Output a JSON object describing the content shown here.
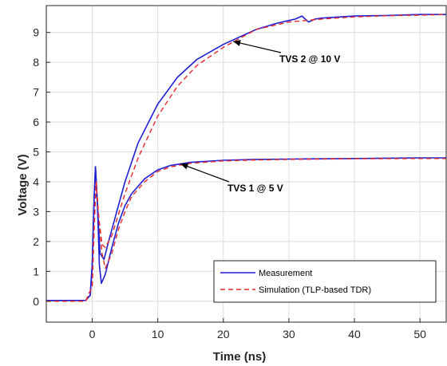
{
  "chart_data": {
    "type": "line",
    "xlabel": "Time (ns)",
    "ylabel": "Voltage (V)",
    "xlim": [
      -7,
      54
    ],
    "ylim": [
      -0.7,
      9.9
    ],
    "xticks": [
      0,
      10,
      20,
      30,
      40,
      50
    ],
    "yticks": [
      0,
      1,
      2,
      3,
      4,
      5,
      6,
      7,
      8,
      9
    ],
    "grid": true,
    "legend_position": "bottom-right",
    "series": [
      {
        "name": "Measurement",
        "color": "#1f1fd6",
        "style": "solid",
        "group": "TVS 2 @ 10 V",
        "x": [
          -7,
          -1,
          -0.3,
          0,
          0.3,
          0.5,
          0.8,
          1.2,
          1.8,
          2.5,
          3.5,
          5,
          7,
          10,
          13,
          16,
          20,
          25,
          28,
          30,
          31,
          32,
          33,
          34,
          35,
          40,
          45,
          50,
          54
        ],
        "y": [
          0.02,
          0.03,
          0.2,
          1.2,
          3.5,
          4.5,
          3.2,
          1.6,
          1.4,
          2.0,
          2.8,
          4.0,
          5.3,
          6.6,
          7.5,
          8.1,
          8.6,
          9.1,
          9.3,
          9.4,
          9.45,
          9.55,
          9.35,
          9.45,
          9.48,
          9.55,
          9.57,
          9.6,
          9.6
        ]
      },
      {
        "name": "Simulation (TLP-based TDR)",
        "color": "#e8262a",
        "style": "dashed",
        "group": "TVS 2 @ 10 V",
        "x": [
          -7,
          -1,
          0,
          0.3,
          0.6,
          1,
          1.5,
          2,
          3,
          4,
          5,
          7,
          10,
          13,
          16,
          20,
          25,
          30,
          35,
          40,
          45,
          50,
          54
        ],
        "y": [
          0,
          0,
          0.5,
          2.5,
          4.0,
          2.8,
          1.9,
          1.8,
          2.2,
          2.9,
          3.6,
          4.8,
          6.2,
          7.2,
          7.9,
          8.5,
          9.1,
          9.35,
          9.45,
          9.52,
          9.56,
          9.58,
          9.6
        ]
      },
      {
        "name": "Measurement",
        "color": "#1f1fd6",
        "style": "solid",
        "group": "TVS 1 @ 5 V",
        "x": [
          -7,
          -1,
          -0.3,
          0,
          0.3,
          0.5,
          0.8,
          1.1,
          1.4,
          2,
          3,
          4,
          5,
          6,
          8,
          10,
          12,
          15,
          20,
          25,
          30,
          40,
          50,
          54
        ],
        "y": [
          0.02,
          0.03,
          0.2,
          1.2,
          3.5,
          4.5,
          3.2,
          1.2,
          0.6,
          0.9,
          1.8,
          2.6,
          3.2,
          3.6,
          4.1,
          4.4,
          4.55,
          4.65,
          4.72,
          4.75,
          4.76,
          4.78,
          4.8,
          4.8
        ]
      },
      {
        "name": "Simulation (TLP-based TDR)",
        "color": "#e8262a",
        "style": "dashed",
        "group": "TVS 1 @ 5 V",
        "x": [
          -7,
          -1,
          0,
          0.3,
          0.6,
          1,
          1.5,
          2,
          3,
          4,
          5,
          6,
          8,
          10,
          12,
          15,
          20,
          25,
          30,
          40,
          50,
          54
        ],
        "y": [
          0,
          0,
          0.5,
          2.5,
          4.0,
          2.8,
          1.6,
          1.1,
          1.6,
          2.4,
          3.0,
          3.5,
          4.0,
          4.35,
          4.5,
          4.62,
          4.7,
          4.73,
          4.75,
          4.77,
          4.78,
          4.78
        ]
      }
    ],
    "legend": [
      {
        "label": "Measurement",
        "color": "#1f1fd6",
        "style": "solid"
      },
      {
        "label": "Simulation (TLP-based TDR)",
        "color": "#e8262a",
        "style": "dashed"
      }
    ],
    "annotations": [
      {
        "text": "TVS 2 @ 10 V",
        "arrow_to": [
          21.5,
          8.7
        ]
      },
      {
        "text": "TVS 1 @ 5 V",
        "arrow_to": [
          13.5,
          4.6
        ]
      }
    ]
  }
}
